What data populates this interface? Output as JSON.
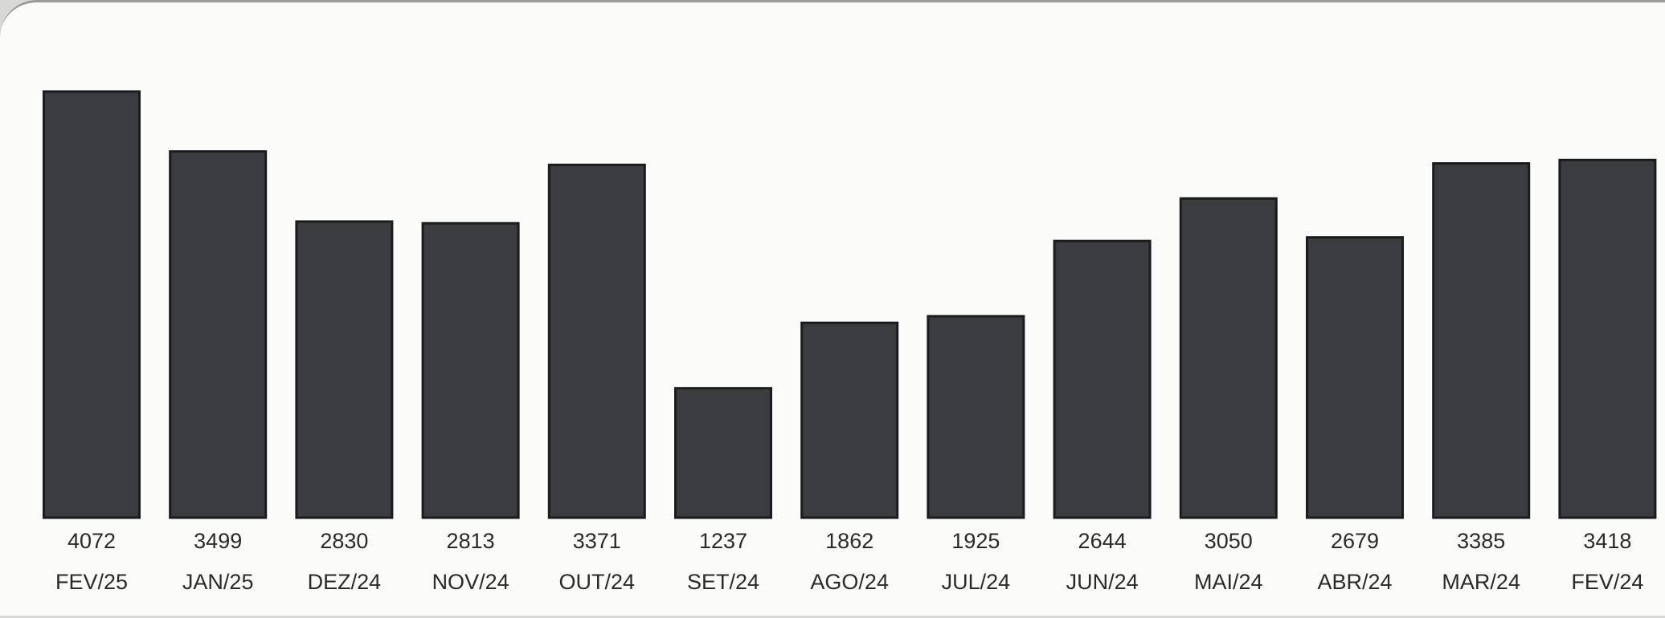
{
  "chart_data": {
    "type": "bar",
    "categories": [
      "FEV/25",
      "JAN/25",
      "DEZ/24",
      "NOV/24",
      "OUT/24",
      "SET/24",
      "AGO/24",
      "JUL/24",
      "JUN/24",
      "MAI/24",
      "ABR/24",
      "MAR/24",
      "FEV/24"
    ],
    "values": [
      4072,
      3499,
      2830,
      2813,
      3371,
      1237,
      1862,
      1925,
      2644,
      3050,
      2679,
      3385,
      3418
    ],
    "value_labels": [
      "4072",
      "3499",
      "2830",
      "2813",
      "3371",
      "1237",
      "1862",
      "1925",
      "2644",
      "3050",
      "2679",
      "3385",
      "3418"
    ],
    "title": "",
    "xlabel": "",
    "ylabel": "",
    "ylim": [
      0,
      4072
    ],
    "grid": false,
    "bar_color": "#3a3c40"
  }
}
